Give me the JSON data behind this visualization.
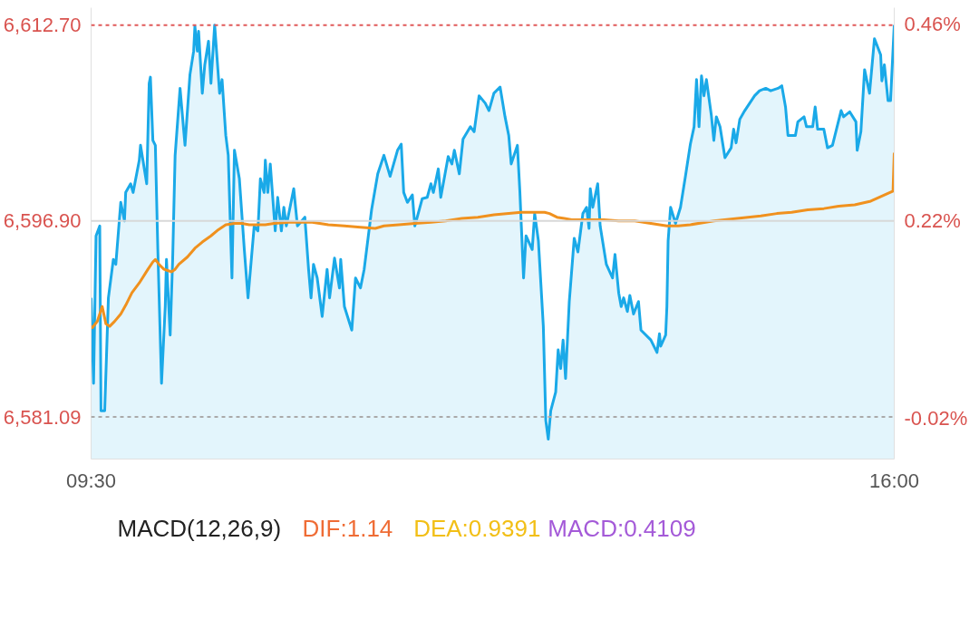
{
  "chart_data": [
    {
      "type": "area",
      "xlim": [
        9.5,
        16.0
      ],
      "ylim": [
        6577.7,
        6614.1
      ],
      "y2lim": [
        -0.07,
        0.48
      ],
      "xticks": [
        {
          "value": 9.5,
          "label": "09:30"
        },
        {
          "value": 16.0,
          "label": "16:00"
        }
      ],
      "yticks": [
        {
          "value": 6612.7,
          "label": "6,612.70"
        },
        {
          "value": 6596.9,
          "label": "6,596.90"
        },
        {
          "value": 6581.09,
          "label": "6,581.09"
        }
      ],
      "y2ticks": [
        {
          "value": 0.46,
          "label": "0.46%"
        },
        {
          "value": 0.22,
          "label": "0.22%"
        },
        {
          "value": -0.02,
          "label": "-0.02%"
        }
      ],
      "grid": false,
      "ref_lines": [
        {
          "axis": "y",
          "value": 6612.7,
          "color": "#e05a5a",
          "line_style": "dashed"
        },
        {
          "axis": "y",
          "value": 6596.9,
          "color": "#d8d8d8",
          "line_style": "solid"
        },
        {
          "axis": "y",
          "value": 6581.09,
          "color": "#aaaaaa",
          "line_style": "dashed"
        }
      ],
      "series": [
        {
          "type": "area",
          "color": "#1aa9e8",
          "x": [
            9.5,
            9.52,
            9.54,
            9.57,
            9.58,
            9.61,
            9.64,
            9.68,
            9.7,
            9.74,
            9.77,
            9.78,
            9.82,
            9.84,
            9.89,
            9.9,
            9.95,
            9.97,
            9.98,
            10.0,
            10.02,
            10.04,
            10.07,
            10.1,
            10.11,
            10.14,
            10.16,
            10.18,
            10.22,
            10.26,
            10.3,
            10.33,
            10.34,
            10.36,
            10.37,
            10.4,
            10.42,
            10.45,
            10.47,
            10.5,
            10.54,
            10.56,
            10.59,
            10.61,
            10.64,
            10.66,
            10.7,
            10.74,
            10.77,
            10.82,
            10.85,
            10.87,
            10.9,
            10.91,
            10.93,
            10.95,
            10.99,
            11.01,
            11.04,
            11.06,
            11.08,
            11.14,
            11.17,
            11.23,
            11.26,
            11.28,
            11.3,
            11.33,
            11.37,
            11.41,
            11.43,
            11.47,
            11.51,
            11.52,
            11.55,
            11.61,
            11.64,
            11.68,
            11.71,
            11.77,
            11.82,
            11.87,
            11.92,
            11.98,
            12.01,
            12.03,
            12.06,
            12.1,
            12.12,
            12.18,
            12.22,
            12.25,
            12.27,
            12.31,
            12.33,
            12.39,
            12.42,
            12.44,
            12.48,
            12.51,
            12.57,
            12.6,
            12.64,
            12.69,
            12.72,
            12.76,
            12.81,
            12.85,
            12.88,
            12.9,
            12.95,
            12.97,
            13.0,
            13.02,
            13.07,
            13.09,
            13.12,
            13.16,
            13.18,
            13.2,
            13.22,
            13.26,
            13.28,
            13.3,
            13.32,
            13.34,
            13.37,
            13.41,
            13.44,
            13.48,
            13.51,
            13.53,
            13.54,
            13.56,
            13.6,
            13.62,
            13.67,
            13.72,
            13.74,
            13.77,
            13.79,
            13.81,
            13.84,
            13.86,
            13.89,
            13.93,
            13.95,
            14.03,
            14.08,
            14.1,
            14.11,
            14.15,
            14.16,
            14.17,
            14.19,
            14.23,
            14.27,
            14.31,
            14.35,
            14.38,
            14.4,
            14.42,
            14.44,
            14.46,
            14.48,
            14.52,
            14.54,
            14.56,
            14.59,
            14.63,
            14.68,
            14.7,
            14.72,
            14.75,
            14.79,
            14.83,
            14.87,
            14.91,
            14.96,
            15.0,
            15.06,
            15.09,
            15.12,
            15.14,
            15.2,
            15.22,
            15.27,
            15.29,
            15.34,
            15.36,
            15.38,
            15.43,
            15.46,
            15.5,
            15.57,
            15.59,
            15.64,
            15.69,
            15.7,
            15.73,
            15.76,
            15.8,
            15.84,
            15.89,
            15.9,
            15.92,
            15.95,
            15.97,
            16.0
          ],
          "values": [
            6590.7,
            6583.8,
            6595.7,
            6596.5,
            6581.6,
            6581.6,
            6590.7,
            6593.8,
            6593.4,
            6598.4,
            6596.9,
            6599.2,
            6599.9,
            6599.2,
            6601.8,
            6603.0,
            6599.9,
            6608.0,
            6608.5,
            6603.4,
            6603.0,
            6594.6,
            6583.8,
            6590.0,
            6593.8,
            6587.7,
            6593.8,
            6602.2,
            6607.6,
            6603.0,
            6608.7,
            6610.6,
            6612.6,
            6610.6,
            6612.2,
            6607.2,
            6609.5,
            6611.4,
            6608.0,
            6612.7,
            6607.2,
            6608.3,
            6603.8,
            6602.2,
            6592.3,
            6602.6,
            6600.3,
            6594.6,
            6590.7,
            6596.5,
            6596.1,
            6600.3,
            6599.2,
            6601.8,
            6599.2,
            6601.5,
            6596.1,
            6598.8,
            6596.1,
            6598.0,
            6596.5,
            6599.5,
            6596.5,
            6597.2,
            6593.0,
            6590.7,
            6593.4,
            6592.3,
            6589.2,
            6593.0,
            6590.7,
            6593.9,
            6591.5,
            6593.8,
            6590.0,
            6588.1,
            6592.3,
            6591.5,
            6593.0,
            6597.8,
            6600.7,
            6602.2,
            6600.5,
            6602.6,
            6603.1,
            6599.2,
            6598.4,
            6599.0,
            6596.5,
            6598.7,
            6598.8,
            6599.9,
            6599.2,
            6601.1,
            6598.8,
            6602.1,
            6601.5,
            6602.6,
            6600.7,
            6603.5,
            6604.5,
            6604.1,
            6607.0,
            6606.4,
            6605.8,
            6607.2,
            6607.7,
            6605.3,
            6603.8,
            6601.5,
            6603.0,
            6599.3,
            6592.3,
            6595.7,
            6594.6,
            6597.5,
            6595.3,
            6588.4,
            6580.8,
            6579.3,
            6581.6,
            6583.1,
            6586.5,
            6585.0,
            6587.3,
            6584.2,
            6590.4,
            6595.5,
            6594.4,
            6597.5,
            6598.0,
            6596.3,
            6599.5,
            6598.0,
            6599.9,
            6596.5,
            6593.4,
            6592.3,
            6594.2,
            6591.1,
            6590.0,
            6590.7,
            6589.6,
            6590.9,
            6589.4,
            6590.4,
            6588.1,
            6587.3,
            6586.3,
            6587.8,
            6586.8,
            6587.7,
            6590.0,
            6595.3,
            6598.0,
            6596.7,
            6598.0,
            6600.5,
            6603.1,
            6604.5,
            6608.3,
            6604.5,
            6608.6,
            6607.0,
            6608.3,
            6605.4,
            6603.4,
            6605.3,
            6604.5,
            6602.0,
            6602.8,
            6604.3,
            6603.2,
            6605.1,
            6605.8,
            6606.4,
            6607.0,
            6607.4,
            6607.6,
            6607.4,
            6607.6,
            6607.8,
            6606.1,
            6603.8,
            6603.8,
            6604.9,
            6605.3,
            6604.5,
            6604.5,
            6606.1,
            6604.3,
            6604.3,
            6602.8,
            6603.0,
            6605.8,
            6605.3,
            6605.7,
            6604.9,
            6602.6,
            6604.1,
            6609.1,
            6607.2,
            6611.6,
            6610.3,
            6608.2,
            6609.5,
            6606.6,
            6606.6,
            6612.7
          ]
        },
        {
          "type": "line",
          "color": "#f0911e",
          "x": [
            9.5,
            9.51,
            9.55,
            9.59,
            9.62,
            9.65,
            9.69,
            9.74,
            9.78,
            9.83,
            9.89,
            9.96,
            10.0,
            10.02,
            10.05,
            10.09,
            10.12,
            10.15,
            10.18,
            10.21,
            10.28,
            10.34,
            10.4,
            10.47,
            10.53,
            10.59,
            10.66,
            10.72,
            10.78,
            10.85,
            10.91,
            10.98,
            11.1,
            11.29,
            11.42,
            11.55,
            11.68,
            11.8,
            11.87,
            11.99,
            12.12,
            12.25,
            12.37,
            12.5,
            12.63,
            12.76,
            12.88,
            12.98,
            13.17,
            13.21,
            13.27,
            13.33,
            13.39,
            13.65,
            13.77,
            13.9,
            14.03,
            14.16,
            14.25,
            14.35,
            14.54,
            14.73,
            14.92,
            15.05,
            15.17,
            15.3,
            15.43,
            15.55,
            15.68,
            15.81,
            15.9,
            15.99,
            16.0
          ],
          "values": [
            6588.4,
            6588.3,
            6588.8,
            6590.0,
            6588.6,
            6588.4,
            6588.8,
            6589.4,
            6590.1,
            6591.1,
            6591.9,
            6593.0,
            6593.6,
            6593.8,
            6593.4,
            6593.0,
            6592.9,
            6592.8,
            6593.0,
            6593.4,
            6594.0,
            6594.7,
            6595.2,
            6595.7,
            6596.2,
            6596.6,
            6596.7,
            6596.7,
            6596.6,
            6596.6,
            6596.6,
            6596.7,
            6596.8,
            6596.8,
            6596.6,
            6596.5,
            6596.4,
            6596.3,
            6596.5,
            6596.6,
            6596.7,
            6596.8,
            6596.9,
            6597.1,
            6597.2,
            6597.4,
            6597.5,
            6597.6,
            6597.6,
            6597.5,
            6597.2,
            6597.1,
            6597.0,
            6597.0,
            6596.9,
            6596.9,
            6596.7,
            6596.5,
            6596.5,
            6596.6,
            6596.9,
            6597.1,
            6597.3,
            6597.5,
            6597.6,
            6597.8,
            6597.9,
            6598.1,
            6598.2,
            6598.5,
            6598.9,
            6599.3,
            6602.4
          ]
        }
      ]
    },
    {
      "type": "other",
      "title": "MACD(12,26,9)",
      "annotations": [
        "DIF:1.14",
        "DEA:0.9391",
        "MACD:0.4109"
      ]
    }
  ]
}
